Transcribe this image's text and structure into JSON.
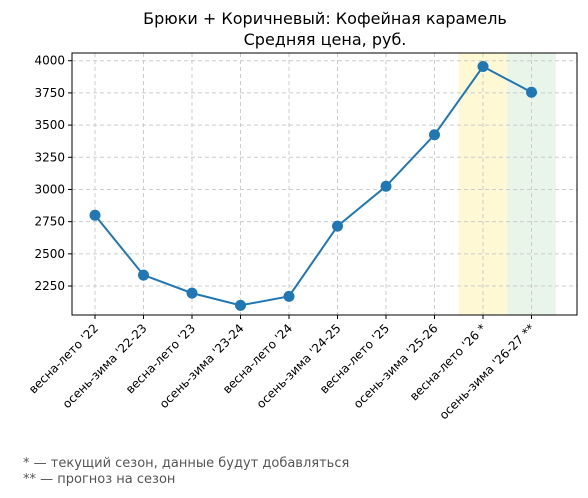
{
  "chart_data": {
    "type": "line",
    "title": "Брюки + Коричневый: Кофейная карамель",
    "subtitle": "Средняя цена, руб.",
    "categories": [
      "весна-лето '22",
      "осень-зима '22-23",
      "весна-лето '23",
      "осень-зима '23-24",
      "весна-лето '24",
      "осень-зима '24-25",
      "весна-лето '25",
      "осень-зима '25-26",
      "весна-лето '26 *",
      "осень-зима '26-27 **"
    ],
    "values": [
      2800,
      2335,
      2195,
      2100,
      2170,
      2715,
      3025,
      3425,
      3955,
      3755
    ],
    "yticks": [
      2250,
      2500,
      2750,
      3000,
      3250,
      3500,
      3750,
      4000
    ],
    "ylim": [
      2025,
      4060
    ],
    "grid": true,
    "line_color": "#1f77b4",
    "highlights": [
      {
        "category_index": 8,
        "color": "#fff3b0"
      },
      {
        "category_index": 9,
        "color": "#d5ecd5"
      }
    ]
  },
  "notes": [
    "* — текущий сезон, данные будут добавляться",
    "** — прогноз на сезон"
  ]
}
